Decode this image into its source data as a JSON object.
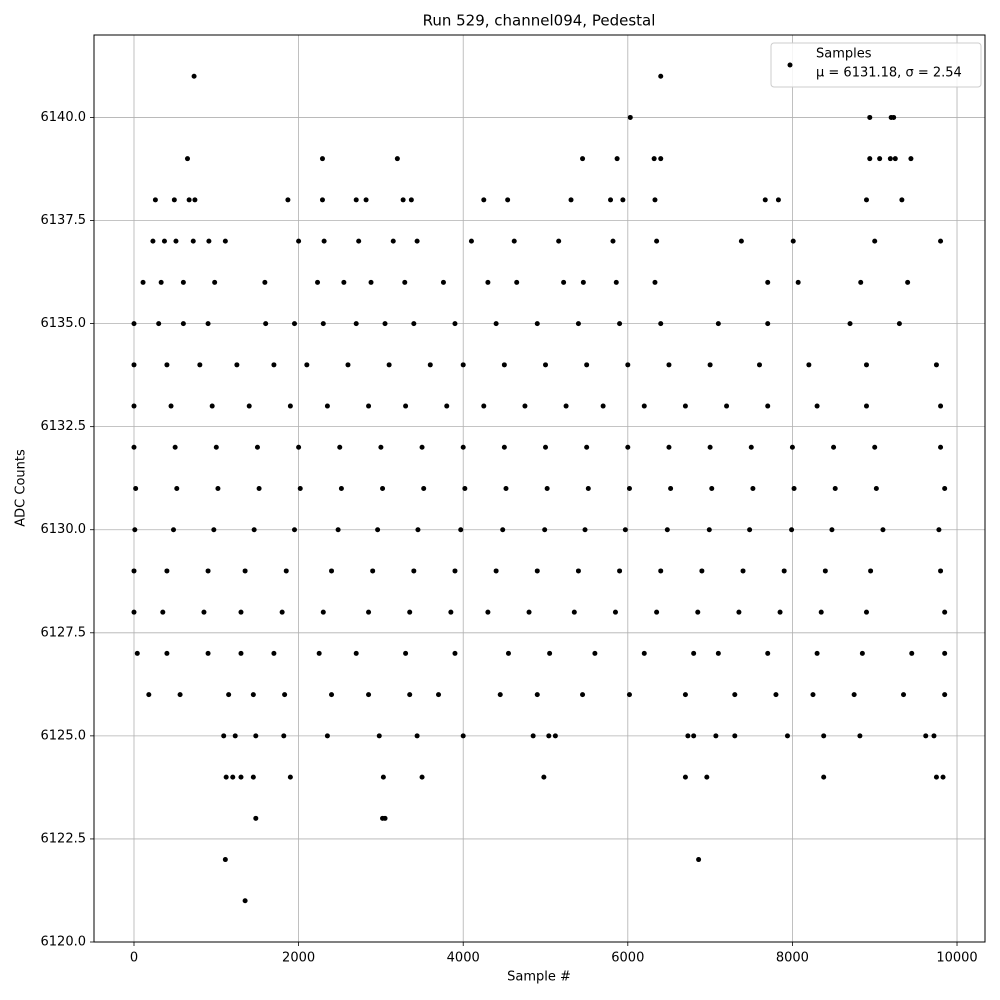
{
  "chart_data": {
    "type": "scatter",
    "title": "Run 529, channel094, Pedestal",
    "x_label": "Sample #",
    "y_label": "ADC Counts",
    "xlim": [
      -486,
      10340
    ],
    "ylim": [
      6120,
      6142.0
    ],
    "xticks": [
      0,
      2000,
      4000,
      6000,
      8000,
      10000
    ],
    "yticks": [
      {
        "value": 6120,
        "label": "6120.0"
      },
      {
        "value": 6122.5,
        "label": "6122.5"
      },
      {
        "value": 6125,
        "label": "6125.0"
      },
      {
        "value": 6127.5,
        "label": "6127.5"
      },
      {
        "value": 6130,
        "label": "6130.0"
      },
      {
        "value": 6132.5,
        "label": "6132.5"
      },
      {
        "value": 6135,
        "label": "6135.0"
      },
      {
        "value": 6137.5,
        "label": "6137.5"
      },
      {
        "value": 6140,
        "label": "6140.0"
      }
    ],
    "grid": true,
    "legend_position": "upper right",
    "series": [
      {
        "name": "Samples",
        "legend_note": "μ = 6131.18, σ = 2.54",
        "color": "#000000",
        "x": [
          730,
          6400,
          6030,
          8940,
          9200,
          9230,
          650,
          2290,
          3200,
          5450,
          5870,
          6320,
          6400,
          8940,
          9060,
          9190,
          9250,
          9440,
          260,
          490,
          670,
          740,
          1870,
          2290,
          2700,
          2820,
          3270,
          3370,
          4250,
          4540,
          5310,
          5790,
          5940,
          6330,
          7670,
          7830,
          8900,
          9330,
          230,
          370,
          510,
          720,
          910,
          1110,
          2000,
          2310,
          2730,
          3150,
          3440,
          4100,
          4620,
          5160,
          5820,
          6350,
          7380,
          8010,
          9000,
          9800,
          110,
          330,
          600,
          980,
          1590,
          2230,
          2550,
          2880,
          3290,
          3760,
          4300,
          4650,
          5220,
          5460,
          5860,
          6330,
          7700,
          8070,
          8830,
          9400,
          0,
          300,
          600,
          900,
          1600,
          1950,
          2300,
          2700,
          3050,
          3400,
          3900,
          4400,
          4900,
          5400,
          5900,
          6400,
          7100,
          7700,
          8700,
          9300,
          0,
          400,
          800,
          1250,
          1700,
          2100,
          2600,
          3100,
          3600,
          4000,
          4500,
          5000,
          5500,
          6000,
          6500,
          7000,
          7600,
          8200,
          8900,
          9750,
          0,
          450,
          950,
          1400,
          1900,
          2350,
          2850,
          3300,
          3800,
          4250,
          4750,
          5250,
          5700,
          6200,
          6700,
          7200,
          7700,
          8300,
          8900,
          9800,
          0,
          500,
          1000,
          1500,
          2000,
          2500,
          3000,
          3500,
          4000,
          4500,
          5000,
          5500,
          6000,
          6500,
          7000,
          7500,
          8000,
          8500,
          9000,
          9800,
          20,
          520,
          1020,
          1520,
          2020,
          2520,
          3020,
          3520,
          4020,
          4520,
          5020,
          5520,
          6020,
          6520,
          7020,
          7520,
          8020,
          8520,
          9020,
          9850,
          10,
          480,
          970,
          1460,
          1950,
          2480,
          2960,
          3450,
          3970,
          4480,
          4990,
          5480,
          5970,
          6480,
          6990,
          7480,
          7990,
          8480,
          9100,
          9780,
          0,
          400,
          900,
          1350,
          1850,
          2400,
          2900,
          3400,
          3900,
          4400,
          4900,
          5400,
          5900,
          6400,
          6900,
          7400,
          7900,
          8400,
          8950,
          9800,
          0,
          350,
          850,
          1300,
          1800,
          2300,
          2850,
          3350,
          3850,
          4300,
          4800,
          5350,
          5850,
          6350,
          6850,
          7350,
          7850,
          8350,
          8900,
          9850,
          40,
          400,
          900,
          1300,
          1700,
          2250,
          2700,
          3300,
          3900,
          4550,
          5050,
          5600,
          6200,
          6800,
          7100,
          7700,
          8300,
          8850,
          9450,
          9850,
          180,
          560,
          1150,
          1450,
          1830,
          2400,
          2850,
          3350,
          3700,
          4450,
          4900,
          5450,
          6020,
          6700,
          7300,
          7800,
          8250,
          8750,
          9350,
          9850,
          1090,
          1230,
          1480,
          1820,
          2350,
          2980,
          3440,
          4000,
          4850,
          5120,
          5040,
          6730,
          6800,
          7070,
          7300,
          7940,
          8380,
          8820,
          9620,
          9720,
          1120,
          1200,
          1300,
          1450,
          1900,
          3030,
          3500,
          4980,
          6700,
          6960,
          8380,
          9750,
          9830,
          1480,
          3020,
          3050,
          1110,
          6860,
          1350
        ],
        "values": [
          6141,
          6141,
          6140,
          6140,
          6140,
          6140,
          6139,
          6139,
          6139,
          6139,
          6139,
          6139,
          6139,
          6139,
          6139,
          6139,
          6139,
          6139,
          6138,
          6138,
          6138,
          6138,
          6138,
          6138,
          6138,
          6138,
          6138,
          6138,
          6138,
          6138,
          6138,
          6138,
          6138,
          6138,
          6138,
          6138,
          6138,
          6138,
          6137,
          6137,
          6137,
          6137,
          6137,
          6137,
          6137,
          6137,
          6137,
          6137,
          6137,
          6137,
          6137,
          6137,
          6137,
          6137,
          6137,
          6137,
          6137,
          6137,
          6136,
          6136,
          6136,
          6136,
          6136,
          6136,
          6136,
          6136,
          6136,
          6136,
          6136,
          6136,
          6136,
          6136,
          6136,
          6136,
          6136,
          6136,
          6136,
          6136,
          6135,
          6135,
          6135,
          6135,
          6135,
          6135,
          6135,
          6135,
          6135,
          6135,
          6135,
          6135,
          6135,
          6135,
          6135,
          6135,
          6135,
          6135,
          6135,
          6135,
          6134,
          6134,
          6134,
          6134,
          6134,
          6134,
          6134,
          6134,
          6134,
          6134,
          6134,
          6134,
          6134,
          6134,
          6134,
          6134,
          6134,
          6134,
          6134,
          6134,
          6133,
          6133,
          6133,
          6133,
          6133,
          6133,
          6133,
          6133,
          6133,
          6133,
          6133,
          6133,
          6133,
          6133,
          6133,
          6133,
          6133,
          6133,
          6133,
          6133,
          6132,
          6132,
          6132,
          6132,
          6132,
          6132,
          6132,
          6132,
          6132,
          6132,
          6132,
          6132,
          6132,
          6132,
          6132,
          6132,
          6132,
          6132,
          6132,
          6132,
          6131,
          6131,
          6131,
          6131,
          6131,
          6131,
          6131,
          6131,
          6131,
          6131,
          6131,
          6131,
          6131,
          6131,
          6131,
          6131,
          6131,
          6131,
          6131,
          6131,
          6130,
          6130,
          6130,
          6130,
          6130,
          6130,
          6130,
          6130,
          6130,
          6130,
          6130,
          6130,
          6130,
          6130,
          6130,
          6130,
          6130,
          6130,
          6130,
          6130,
          6129,
          6129,
          6129,
          6129,
          6129,
          6129,
          6129,
          6129,
          6129,
          6129,
          6129,
          6129,
          6129,
          6129,
          6129,
          6129,
          6129,
          6129,
          6129,
          6129,
          6128,
          6128,
          6128,
          6128,
          6128,
          6128,
          6128,
          6128,
          6128,
          6128,
          6128,
          6128,
          6128,
          6128,
          6128,
          6128,
          6128,
          6128,
          6128,
          6128,
          6127,
          6127,
          6127,
          6127,
          6127,
          6127,
          6127,
          6127,
          6127,
          6127,
          6127,
          6127,
          6127,
          6127,
          6127,
          6127,
          6127,
          6127,
          6127,
          6127,
          6126,
          6126,
          6126,
          6126,
          6126,
          6126,
          6126,
          6126,
          6126,
          6126,
          6126,
          6126,
          6126,
          6126,
          6126,
          6126,
          6126,
          6126,
          6126,
          6126,
          6125,
          6125,
          6125,
          6125,
          6125,
          6125,
          6125,
          6125,
          6125,
          6125,
          6125,
          6125,
          6125,
          6125,
          6125,
          6125,
          6125,
          6125,
          6125,
          6125,
          6124,
          6124,
          6124,
          6124,
          6124,
          6124,
          6124,
          6124,
          6124,
          6124,
          6124,
          6124,
          6124,
          6123,
          6123,
          6123,
          6122,
          6122,
          6121
        ]
      }
    ]
  }
}
